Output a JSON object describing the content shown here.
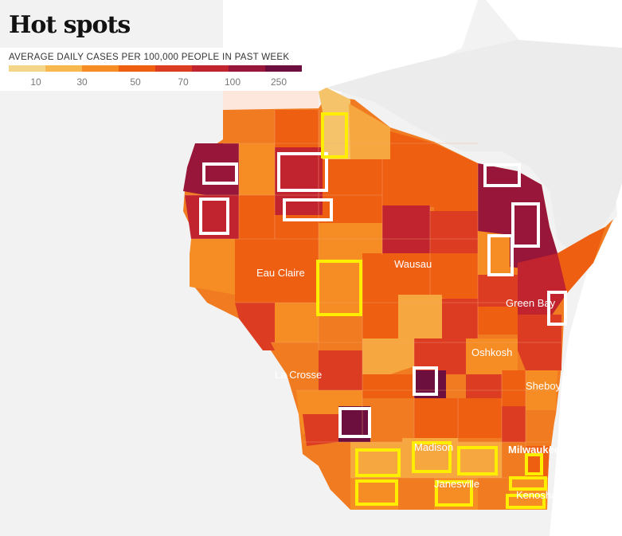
{
  "title": "Hot spots",
  "legend": {
    "label": "AVERAGE DAILY CASES PER 100,000 PEOPLE IN PAST WEEK",
    "colors": [
      "#f4d68a",
      "#f7b84f",
      "#f68c24",
      "#ee5f12",
      "#dc3c22",
      "#c1242e",
      "#98163a",
      "#6c0f3e"
    ],
    "ticks": [
      "10",
      "30",
      "50",
      "70",
      "100",
      "250"
    ]
  },
  "cities": [
    {
      "name": "Eau Claire",
      "weight": "normal"
    },
    {
      "name": "Wausau",
      "weight": "normal"
    },
    {
      "name": "Green Bay",
      "weight": "normal"
    },
    {
      "name": "Oshkosh",
      "weight": "normal"
    },
    {
      "name": "La Crosse",
      "weight": "normal"
    },
    {
      "name": "Sheboygan",
      "weight": "normal"
    },
    {
      "name": "Madison",
      "weight": "normal"
    },
    {
      "name": "Milwaukee",
      "weight": "bold"
    },
    {
      "name": "Janesville",
      "weight": "normal"
    },
    {
      "name": "Kenosha",
      "weight": "normal"
    }
  ],
  "highlight_colors": {
    "rising": "#ffffff",
    "other": "#ffee00"
  }
}
